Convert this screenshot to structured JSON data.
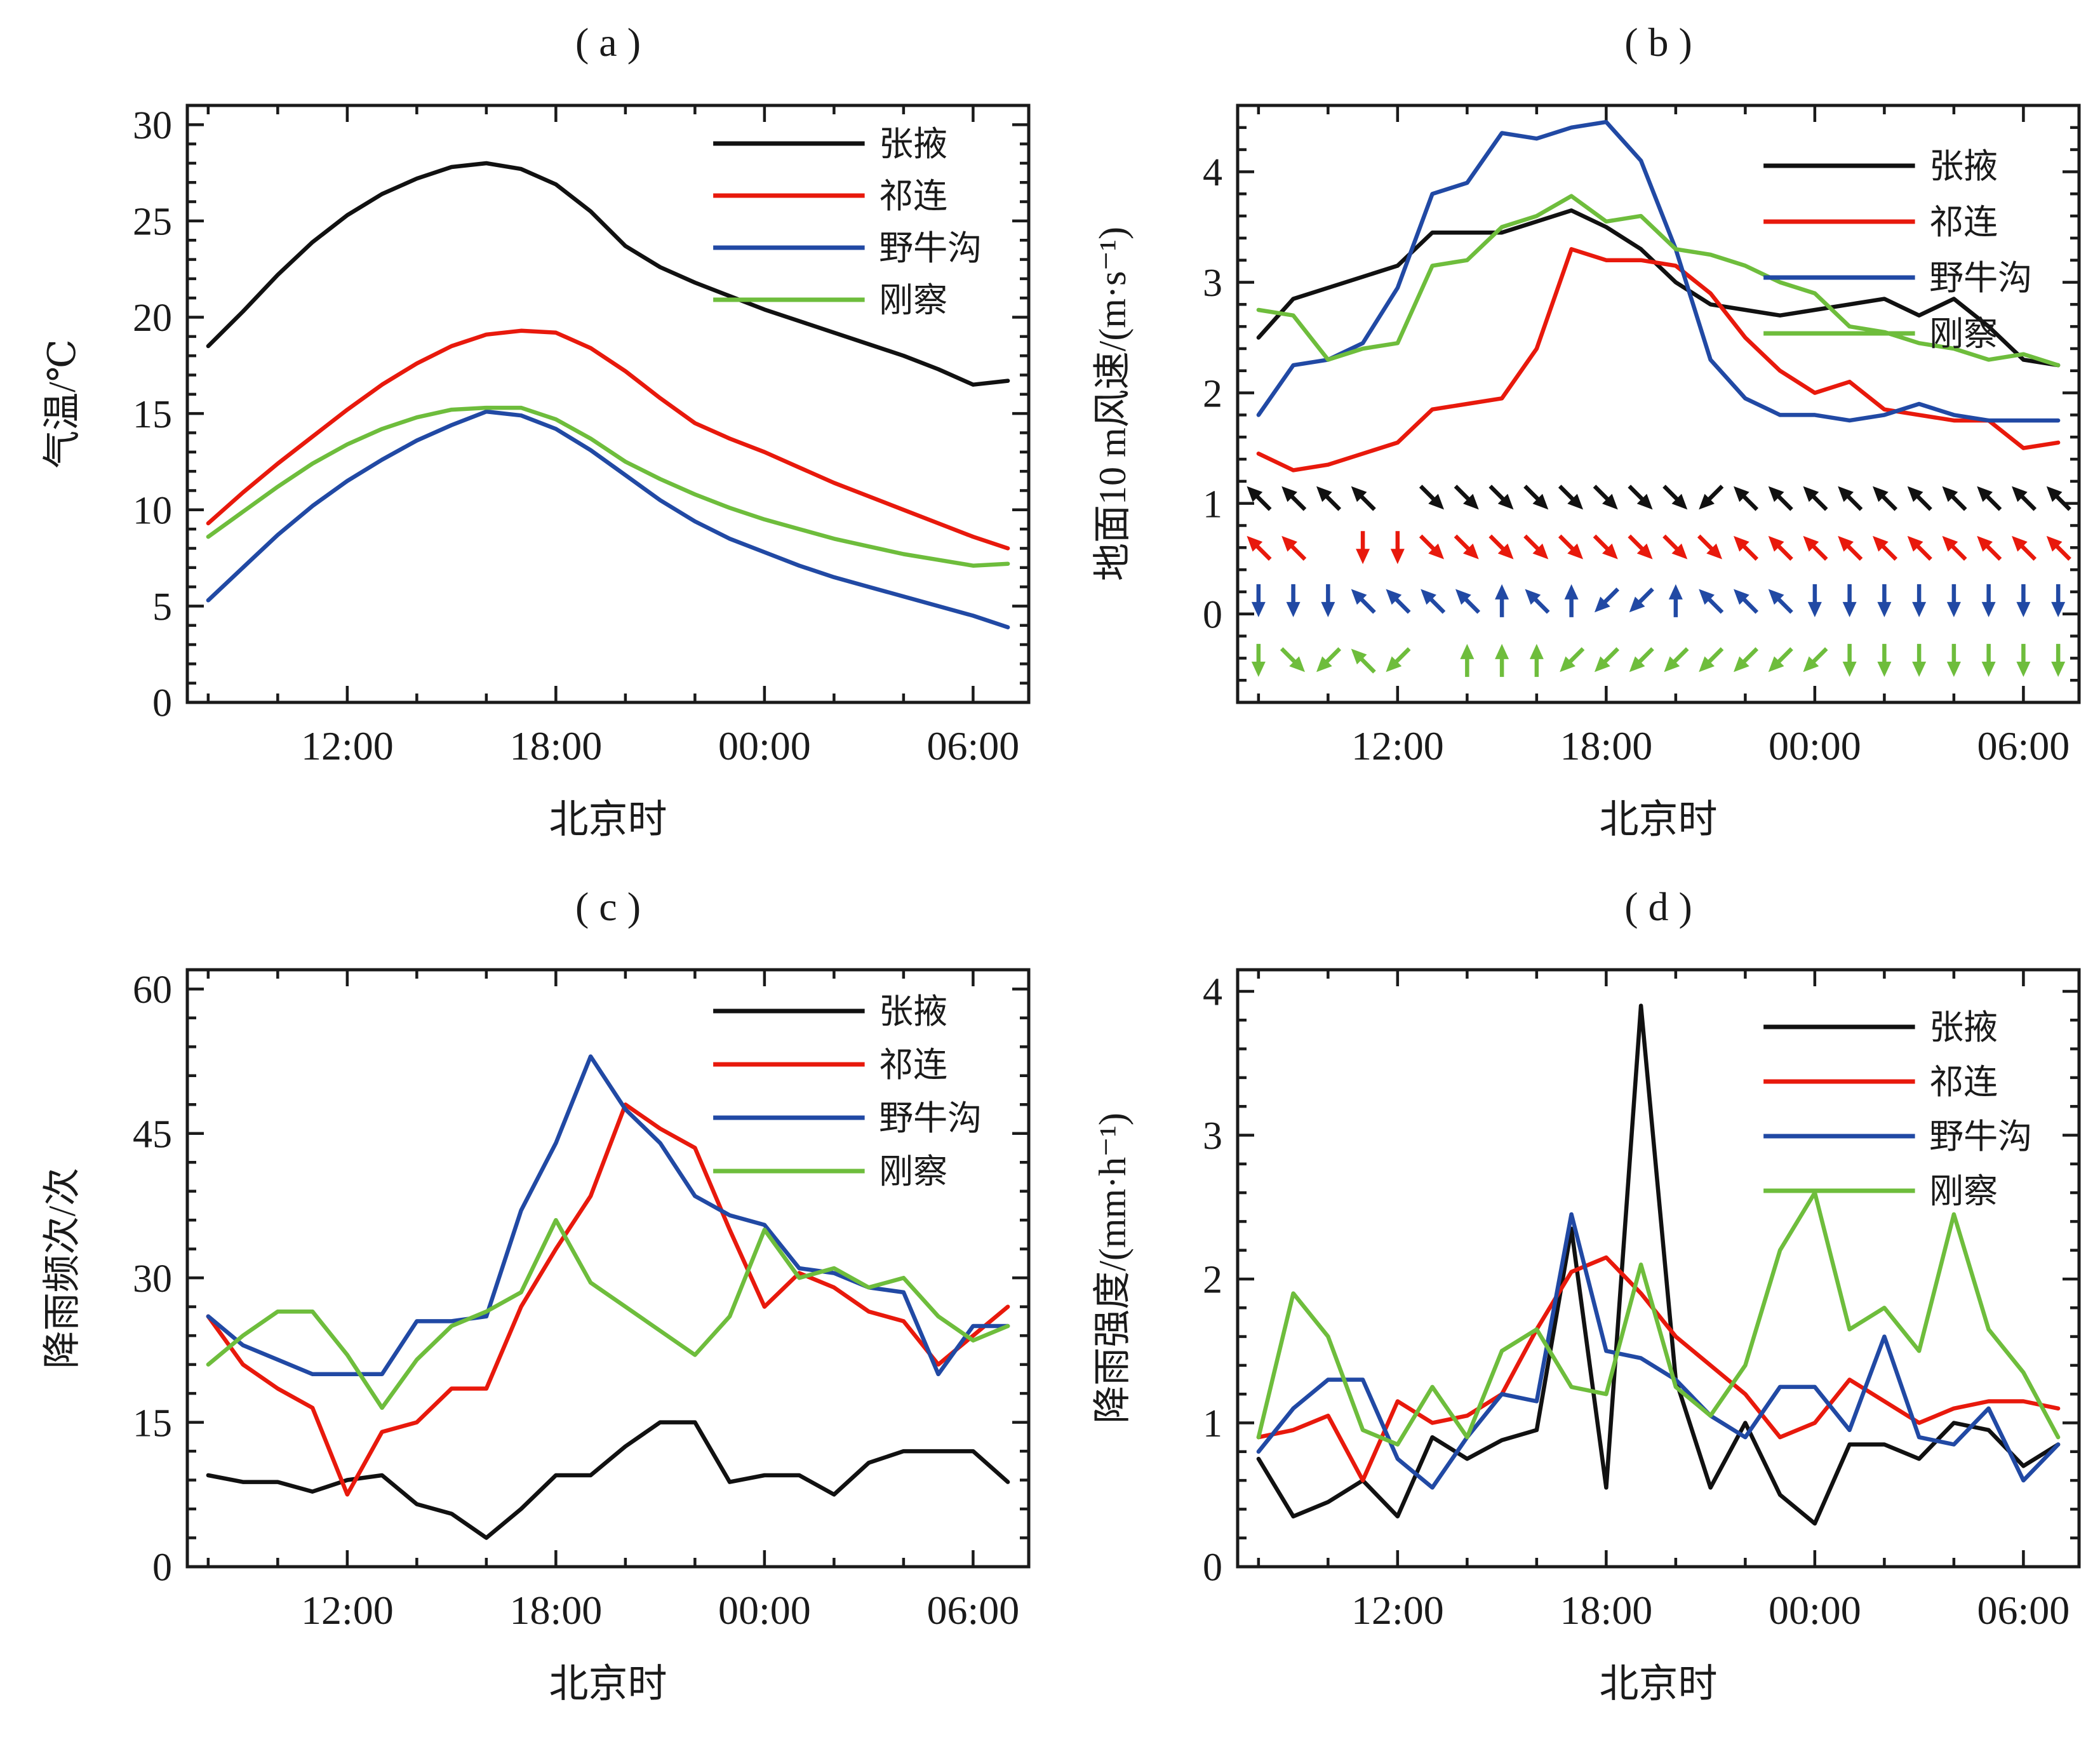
{
  "figure": {
    "x_axis_label": "北京时",
    "time_start": "08:00",
    "time_step_hours": 1,
    "stations": [
      "张掖",
      "祁连",
      "野牛沟",
      "刚察"
    ],
    "colors": {
      "张掖": "#111111",
      "祁连": "#e8190c",
      "野牛沟": "#2149a4",
      "刚察": "#6ebd3c"
    }
  },
  "chart_data": [
    {
      "id": "a",
      "type": "line",
      "title": "( a )",
      "xlabel": "北京时",
      "ylabel": "气温/℃",
      "xtick_labels": [
        "12:00",
        "18:00",
        "00:00",
        "06:00"
      ],
      "xtick_indices": [
        4,
        10,
        16,
        22
      ],
      "xminor_indices": [
        0,
        2,
        6,
        8,
        12,
        14,
        18,
        20
      ],
      "ylim": [
        0,
        31
      ],
      "yticks": [
        0,
        5,
        10,
        15,
        20,
        25,
        30
      ],
      "ytick_minor": 1,
      "legend_position": "top-right",
      "grid": false,
      "series": [
        {
          "name": "张掖",
          "color": "#111111",
          "values": [
            18.5,
            20.3,
            22.2,
            23.9,
            25.3,
            26.4,
            27.2,
            27.8,
            28.0,
            27.7,
            26.9,
            25.5,
            23.7,
            22.6,
            21.8,
            21.1,
            20.4,
            19.8,
            19.2,
            18.6,
            18.0,
            17.3,
            16.5,
            16.7
          ]
        },
        {
          "name": "祁连",
          "color": "#e8190c",
          "values": [
            9.3,
            10.9,
            12.4,
            13.8,
            15.2,
            16.5,
            17.6,
            18.5,
            19.1,
            19.3,
            19.2,
            18.4,
            17.2,
            15.8,
            14.5,
            13.7,
            13.0,
            12.2,
            11.4,
            10.7,
            10.0,
            9.3,
            8.6,
            8.0
          ]
        },
        {
          "name": "野牛沟",
          "color": "#2149a4",
          "values": [
            5.3,
            7.0,
            8.7,
            10.2,
            11.5,
            12.6,
            13.6,
            14.4,
            15.1,
            14.9,
            14.2,
            13.1,
            11.8,
            10.5,
            9.4,
            8.5,
            7.8,
            7.1,
            6.5,
            6.0,
            5.5,
            5.0,
            4.5,
            3.9
          ]
        },
        {
          "name": "刚察",
          "color": "#6ebd3c",
          "values": [
            8.6,
            9.9,
            11.2,
            12.4,
            13.4,
            14.2,
            14.8,
            15.2,
            15.3,
            15.3,
            14.7,
            13.7,
            12.5,
            11.6,
            10.8,
            10.1,
            9.5,
            9.0,
            8.5,
            8.1,
            7.7,
            7.4,
            7.1,
            7.2
          ]
        }
      ]
    },
    {
      "id": "b",
      "type": "line",
      "title": "( b )",
      "xlabel": "北京时",
      "ylabel": "地面10 m风速/(m·s⁻¹)",
      "xtick_labels": [
        "12:00",
        "18:00",
        "00:00",
        "06:00"
      ],
      "xtick_indices": [
        4,
        10,
        16,
        22
      ],
      "xminor_indices": [
        0,
        2,
        6,
        8,
        12,
        14,
        18,
        20
      ],
      "ylim": [
        -0.8,
        4.6
      ],
      "yticks": [
        0,
        1,
        2,
        3,
        4
      ],
      "ytick_minor": 0.2,
      "legend_position": "top-right",
      "grid": false,
      "series": [
        {
          "name": "张掖",
          "color": "#111111",
          "values": [
            2.5,
            2.85,
            2.95,
            3.05,
            3.15,
            3.45,
            3.45,
            3.45,
            3.55,
            3.65,
            3.5,
            3.3,
            3.0,
            2.8,
            2.75,
            2.7,
            2.75,
            2.8,
            2.85,
            2.7,
            2.85,
            2.6,
            2.3,
            2.25
          ]
        },
        {
          "name": "祁连",
          "color": "#e8190c",
          "values": [
            1.45,
            1.3,
            1.35,
            1.45,
            1.55,
            1.85,
            1.9,
            1.95,
            2.4,
            3.3,
            3.2,
            3.2,
            3.15,
            2.9,
            2.5,
            2.2,
            2.0,
            2.1,
            1.85,
            1.8,
            1.75,
            1.75,
            1.5,
            1.55
          ]
        },
        {
          "name": "野牛沟",
          "color": "#2149a4",
          "values": [
            1.8,
            2.25,
            2.3,
            2.45,
            2.95,
            3.8,
            3.9,
            4.35,
            4.3,
            4.4,
            4.45,
            4.1,
            3.3,
            2.3,
            1.95,
            1.8,
            1.8,
            1.75,
            1.8,
            1.9,
            1.8,
            1.75,
            1.75,
            1.75
          ]
        },
        {
          "name": "刚察",
          "color": "#6ebd3c",
          "values": [
            2.75,
            2.7,
            2.3,
            2.4,
            2.45,
            3.15,
            3.2,
            3.5,
            3.6,
            3.78,
            3.55,
            3.6,
            3.3,
            3.25,
            3.15,
            3.0,
            2.9,
            2.6,
            2.55,
            2.45,
            2.4,
            2.3,
            2.35,
            2.25
          ]
        }
      ],
      "wind_arrows": [
        {
          "station": "张掖",
          "color": "#111111",
          "y": 1.05,
          "angles_deg": [
            135,
            135,
            135,
            135,
            null,
            315,
            315,
            315,
            315,
            315,
            315,
            315,
            315,
            225,
            135,
            135,
            135,
            135,
            135,
            135,
            135,
            135,
            135,
            135
          ]
        },
        {
          "station": "祁连",
          "color": "#e8190c",
          "y": 0.6,
          "angles_deg": [
            135,
            135,
            null,
            270,
            270,
            315,
            315,
            315,
            315,
            315,
            315,
            315,
            315,
            315,
            135,
            135,
            135,
            135,
            135,
            135,
            135,
            135,
            135,
            135
          ]
        },
        {
          "station": "野牛沟",
          "color": "#2149a4",
          "y": 0.12,
          "angles_deg": [
            270,
            270,
            270,
            135,
            135,
            135,
            135,
            90,
            135,
            90,
            225,
            225,
            90,
            135,
            135,
            135,
            270,
            270,
            270,
            270,
            270,
            270,
            270,
            270
          ]
        },
        {
          "station": "刚察",
          "color": "#6ebd3c",
          "y": -0.42,
          "angles_deg": [
            270,
            315,
            225,
            135,
            225,
            null,
            90,
            90,
            90,
            225,
            225,
            225,
            225,
            225,
            225,
            225,
            225,
            270,
            270,
            270,
            270,
            270,
            270,
            270
          ]
        }
      ]
    },
    {
      "id": "c",
      "type": "line",
      "title": "( c )",
      "xlabel": "北京时",
      "ylabel": "降雨频次/次",
      "xtick_labels": [
        "12:00",
        "18:00",
        "00:00",
        "06:00"
      ],
      "xtick_indices": [
        4,
        10,
        16,
        22
      ],
      "xminor_indices": [
        0,
        2,
        6,
        8,
        12,
        14,
        18,
        20
      ],
      "ylim": [
        0,
        62
      ],
      "yticks": [
        0,
        15,
        30,
        45,
        60
      ],
      "ytick_minor": 3,
      "legend_position": "top-right",
      "grid": false,
      "series": [
        {
          "name": "张掖",
          "color": "#111111",
          "values": [
            9.5,
            8.8,
            8.8,
            7.8,
            9.0,
            9.5,
            6.5,
            5.5,
            3,
            6,
            9.5,
            9.5,
            12.5,
            15,
            15,
            8.8,
            9.5,
            9.5,
            7.5,
            10.8,
            12,
            12,
            12,
            8.8
          ]
        },
        {
          "name": "祁连",
          "color": "#e8190c",
          "values": [
            26,
            21,
            18.5,
            16.5,
            7.5,
            14,
            15,
            18.5,
            18.5,
            27,
            33,
            38.5,
            48,
            45.5,
            43.5,
            35,
            27,
            30.5,
            29,
            26.5,
            25.5,
            21,
            24,
            27
          ]
        },
        {
          "name": "野牛沟",
          "color": "#2149a4",
          "values": [
            26,
            23,
            21.5,
            20,
            20,
            20,
            25.5,
            25.5,
            26,
            37,
            44,
            53,
            47.5,
            44,
            38.5,
            36.5,
            35.5,
            31,
            30.5,
            29,
            28.5,
            20,
            25,
            25
          ]
        },
        {
          "name": "刚察",
          "color": "#6ebd3c",
          "values": [
            21,
            24,
            26.5,
            26.5,
            22,
            16.5,
            21.5,
            25,
            26.5,
            28.5,
            36,
            29.5,
            27,
            24.5,
            22,
            26,
            35,
            30,
            31,
            29,
            30,
            26,
            23.5,
            25
          ]
        }
      ]
    },
    {
      "id": "d",
      "type": "line",
      "title": "( d )",
      "xlabel": "北京时",
      "ylabel": "降雨强度/(mm·h⁻¹)",
      "xtick_labels": [
        "12:00",
        "18:00",
        "00:00",
        "06:00"
      ],
      "xtick_indices": [
        4,
        10,
        16,
        22
      ],
      "xminor_indices": [
        0,
        2,
        6,
        8,
        12,
        14,
        18,
        20
      ],
      "ylim": [
        0,
        4.15
      ],
      "yticks": [
        0,
        1,
        2,
        3,
        4
      ],
      "ytick_minor": 0.2,
      "legend_position": "top-right",
      "grid": false,
      "series": [
        {
          "name": "张掖",
          "color": "#111111",
          "values": [
            0.75,
            0.35,
            0.45,
            0.6,
            0.35,
            0.9,
            0.75,
            0.88,
            0.95,
            2.35,
            0.55,
            3.9,
            1.3,
            0.55,
            1.0,
            0.5,
            0.3,
            0.85,
            0.85,
            0.75,
            1.0,
            0.95,
            0.7,
            0.85
          ]
        },
        {
          "name": "祁连",
          "color": "#e8190c",
          "values": [
            0.9,
            0.95,
            1.05,
            0.6,
            1.15,
            1.0,
            1.05,
            1.2,
            1.65,
            2.05,
            2.15,
            1.9,
            1.6,
            1.4,
            1.2,
            0.9,
            1.0,
            1.3,
            1.15,
            1.0,
            1.1,
            1.15,
            1.15,
            1.1
          ]
        },
        {
          "name": "野牛沟",
          "color": "#2149a4",
          "values": [
            0.8,
            1.1,
            1.3,
            1.3,
            0.75,
            0.55,
            0.9,
            1.2,
            1.15,
            2.45,
            1.5,
            1.45,
            1.3,
            1.05,
            0.9,
            1.25,
            1.25,
            0.95,
            1.6,
            0.9,
            0.85,
            1.1,
            0.6,
            0.85
          ]
        },
        {
          "name": "刚察",
          "color": "#6ebd3c",
          "values": [
            0.9,
            1.9,
            1.6,
            0.95,
            0.85,
            1.25,
            0.9,
            1.5,
            1.65,
            1.25,
            1.2,
            2.1,
            1.25,
            1.05,
            1.4,
            2.2,
            2.6,
            1.65,
            1.8,
            1.5,
            2.45,
            1.65,
            1.35,
            0.9
          ]
        }
      ]
    }
  ]
}
